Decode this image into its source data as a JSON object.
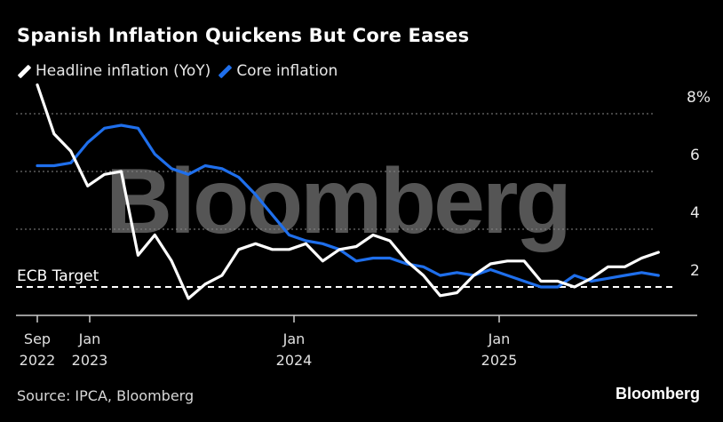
{
  "title": "Spanish Inflation Quickens But Core Eases",
  "source": "Source: IPCA, Bloomberg",
  "brand": "Bloomberg",
  "watermark": "Bloomberg",
  "chart_data": {
    "type": "line",
    "title": "Spanish Inflation Quickens But Core Eases",
    "xlabel": "",
    "ylabel": "",
    "ylim": [
      1,
      9
    ],
    "yticks": [
      2,
      4,
      6,
      8
    ],
    "ytick_labels": [
      "2",
      "4",
      "6",
      "8%"
    ],
    "grid": true,
    "legend_position": "top-left",
    "x": [
      "2022-09",
      "2022-10",
      "2022-11",
      "2022-12",
      "2023-01",
      "2023-02",
      "2023-03",
      "2023-04",
      "2023-05",
      "2023-06",
      "2023-07",
      "2023-08",
      "2023-09",
      "2023-10",
      "2023-11",
      "2023-12",
      "2024-01",
      "2024-02",
      "2024-03",
      "2024-04",
      "2024-05",
      "2024-06",
      "2024-07",
      "2024-08",
      "2024-09",
      "2024-10",
      "2024-11",
      "2024-12",
      "2025-01",
      "2025-02",
      "2025-03",
      "2025-04",
      "2025-05",
      "2025-06",
      "2025-07",
      "2025-08",
      "2025-09",
      "2025-10"
    ],
    "xticks": [
      {
        "index": 0,
        "line1": "Sep",
        "line2": "2022"
      },
      {
        "index": 4,
        "line1": "Jan",
        "line2": "2023"
      },
      {
        "index": 16,
        "line1": "Jan",
        "line2": "2024"
      },
      {
        "index": 28,
        "line1": "Jan",
        "line2": "2025"
      }
    ],
    "series": [
      {
        "name": "Headline inflation (YoY)",
        "color": "#ffffff",
        "values": [
          9.0,
          7.3,
          6.7,
          5.5,
          5.9,
          6.0,
          3.1,
          3.8,
          2.9,
          1.6,
          2.1,
          2.4,
          3.3,
          3.5,
          3.3,
          3.3,
          3.5,
          2.9,
          3.3,
          3.4,
          3.8,
          3.6,
          2.9,
          2.4,
          1.7,
          1.8,
          2.4,
          2.8,
          2.9,
          2.9,
          2.2,
          2.2,
          2.0,
          2.3,
          2.7,
          2.7,
          3.0,
          3.2
        ]
      },
      {
        "name": "Core inflation",
        "color": "#1f6fec",
        "values": [
          6.2,
          6.2,
          6.3,
          7.0,
          7.5,
          7.6,
          7.5,
          6.6,
          6.1,
          5.9,
          6.2,
          6.1,
          5.8,
          5.2,
          4.5,
          3.8,
          3.6,
          3.5,
          3.3,
          2.9,
          3.0,
          3.0,
          2.8,
          2.7,
          2.4,
          2.5,
          2.4,
          2.6,
          2.4,
          2.2,
          2.0,
          2.0,
          2.4,
          2.2,
          2.3,
          2.4,
          2.5,
          2.4
        ]
      }
    ],
    "reference_lines": [
      {
        "label": "ECB Target",
        "value": 2.0
      }
    ]
  }
}
